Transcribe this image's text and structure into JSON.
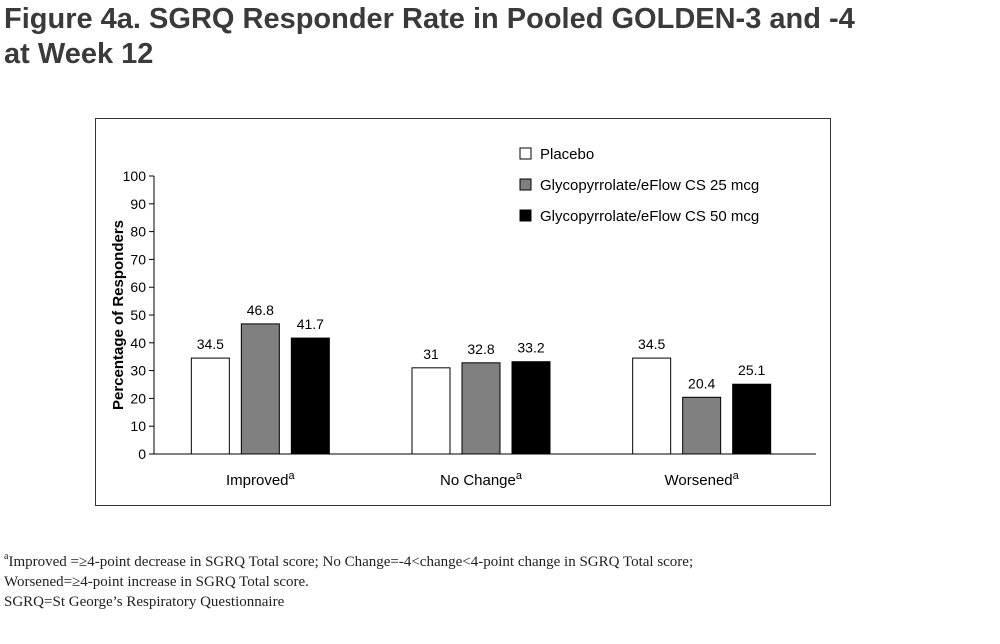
{
  "page": {
    "title_line1": "Figure 4a. SGRQ Responder Rate in Pooled GOLDEN-3 and -4",
    "title_line2": "at Week 12"
  },
  "chart_data": {
    "type": "bar",
    "categories": [
      "Improved",
      "No Change",
      "Worsened"
    ],
    "category_superscript": "a",
    "series": [
      {
        "name": "Placebo",
        "values": [
          34.5,
          31,
          34.5
        ],
        "color": "#ffffff"
      },
      {
        "name": "Glycopyrrolate/eFlow CS 25 mcg",
        "values": [
          46.8,
          32.8,
          20.4
        ],
        "color": "#808080"
      },
      {
        "name": "Glycopyrrolate/eFlow CS 50 mcg",
        "values": [
          41.7,
          33.2,
          25.1
        ],
        "color": "#000000"
      }
    ],
    "value_labels": [
      [
        "34.5",
        "31",
        "34.5"
      ],
      [
        "46.8",
        "32.8",
        "20.4"
      ],
      [
        "41.7",
        "33.2",
        "25.1"
      ]
    ],
    "ylabel": "Percentage of Responders",
    "xlabel": "",
    "ylim": [
      0,
      100
    ],
    "yticks": [
      "0",
      "10",
      "20",
      "30",
      "40",
      "50",
      "60",
      "70",
      "80",
      "90",
      "100"
    ],
    "grid": false,
    "legend_position": "top-right"
  },
  "footnotes": {
    "note1_sup": "a",
    "note1_text": "Improved =≥4-point decrease in SGRQ Total score; No Change=-4<change<4-point change in SGRQ Total score;",
    "note2_text": "Worsened=≥4-point increase in SGRQ Total score.",
    "note3_text": "SGRQ=St George’s Respiratory Questionnaire"
  }
}
